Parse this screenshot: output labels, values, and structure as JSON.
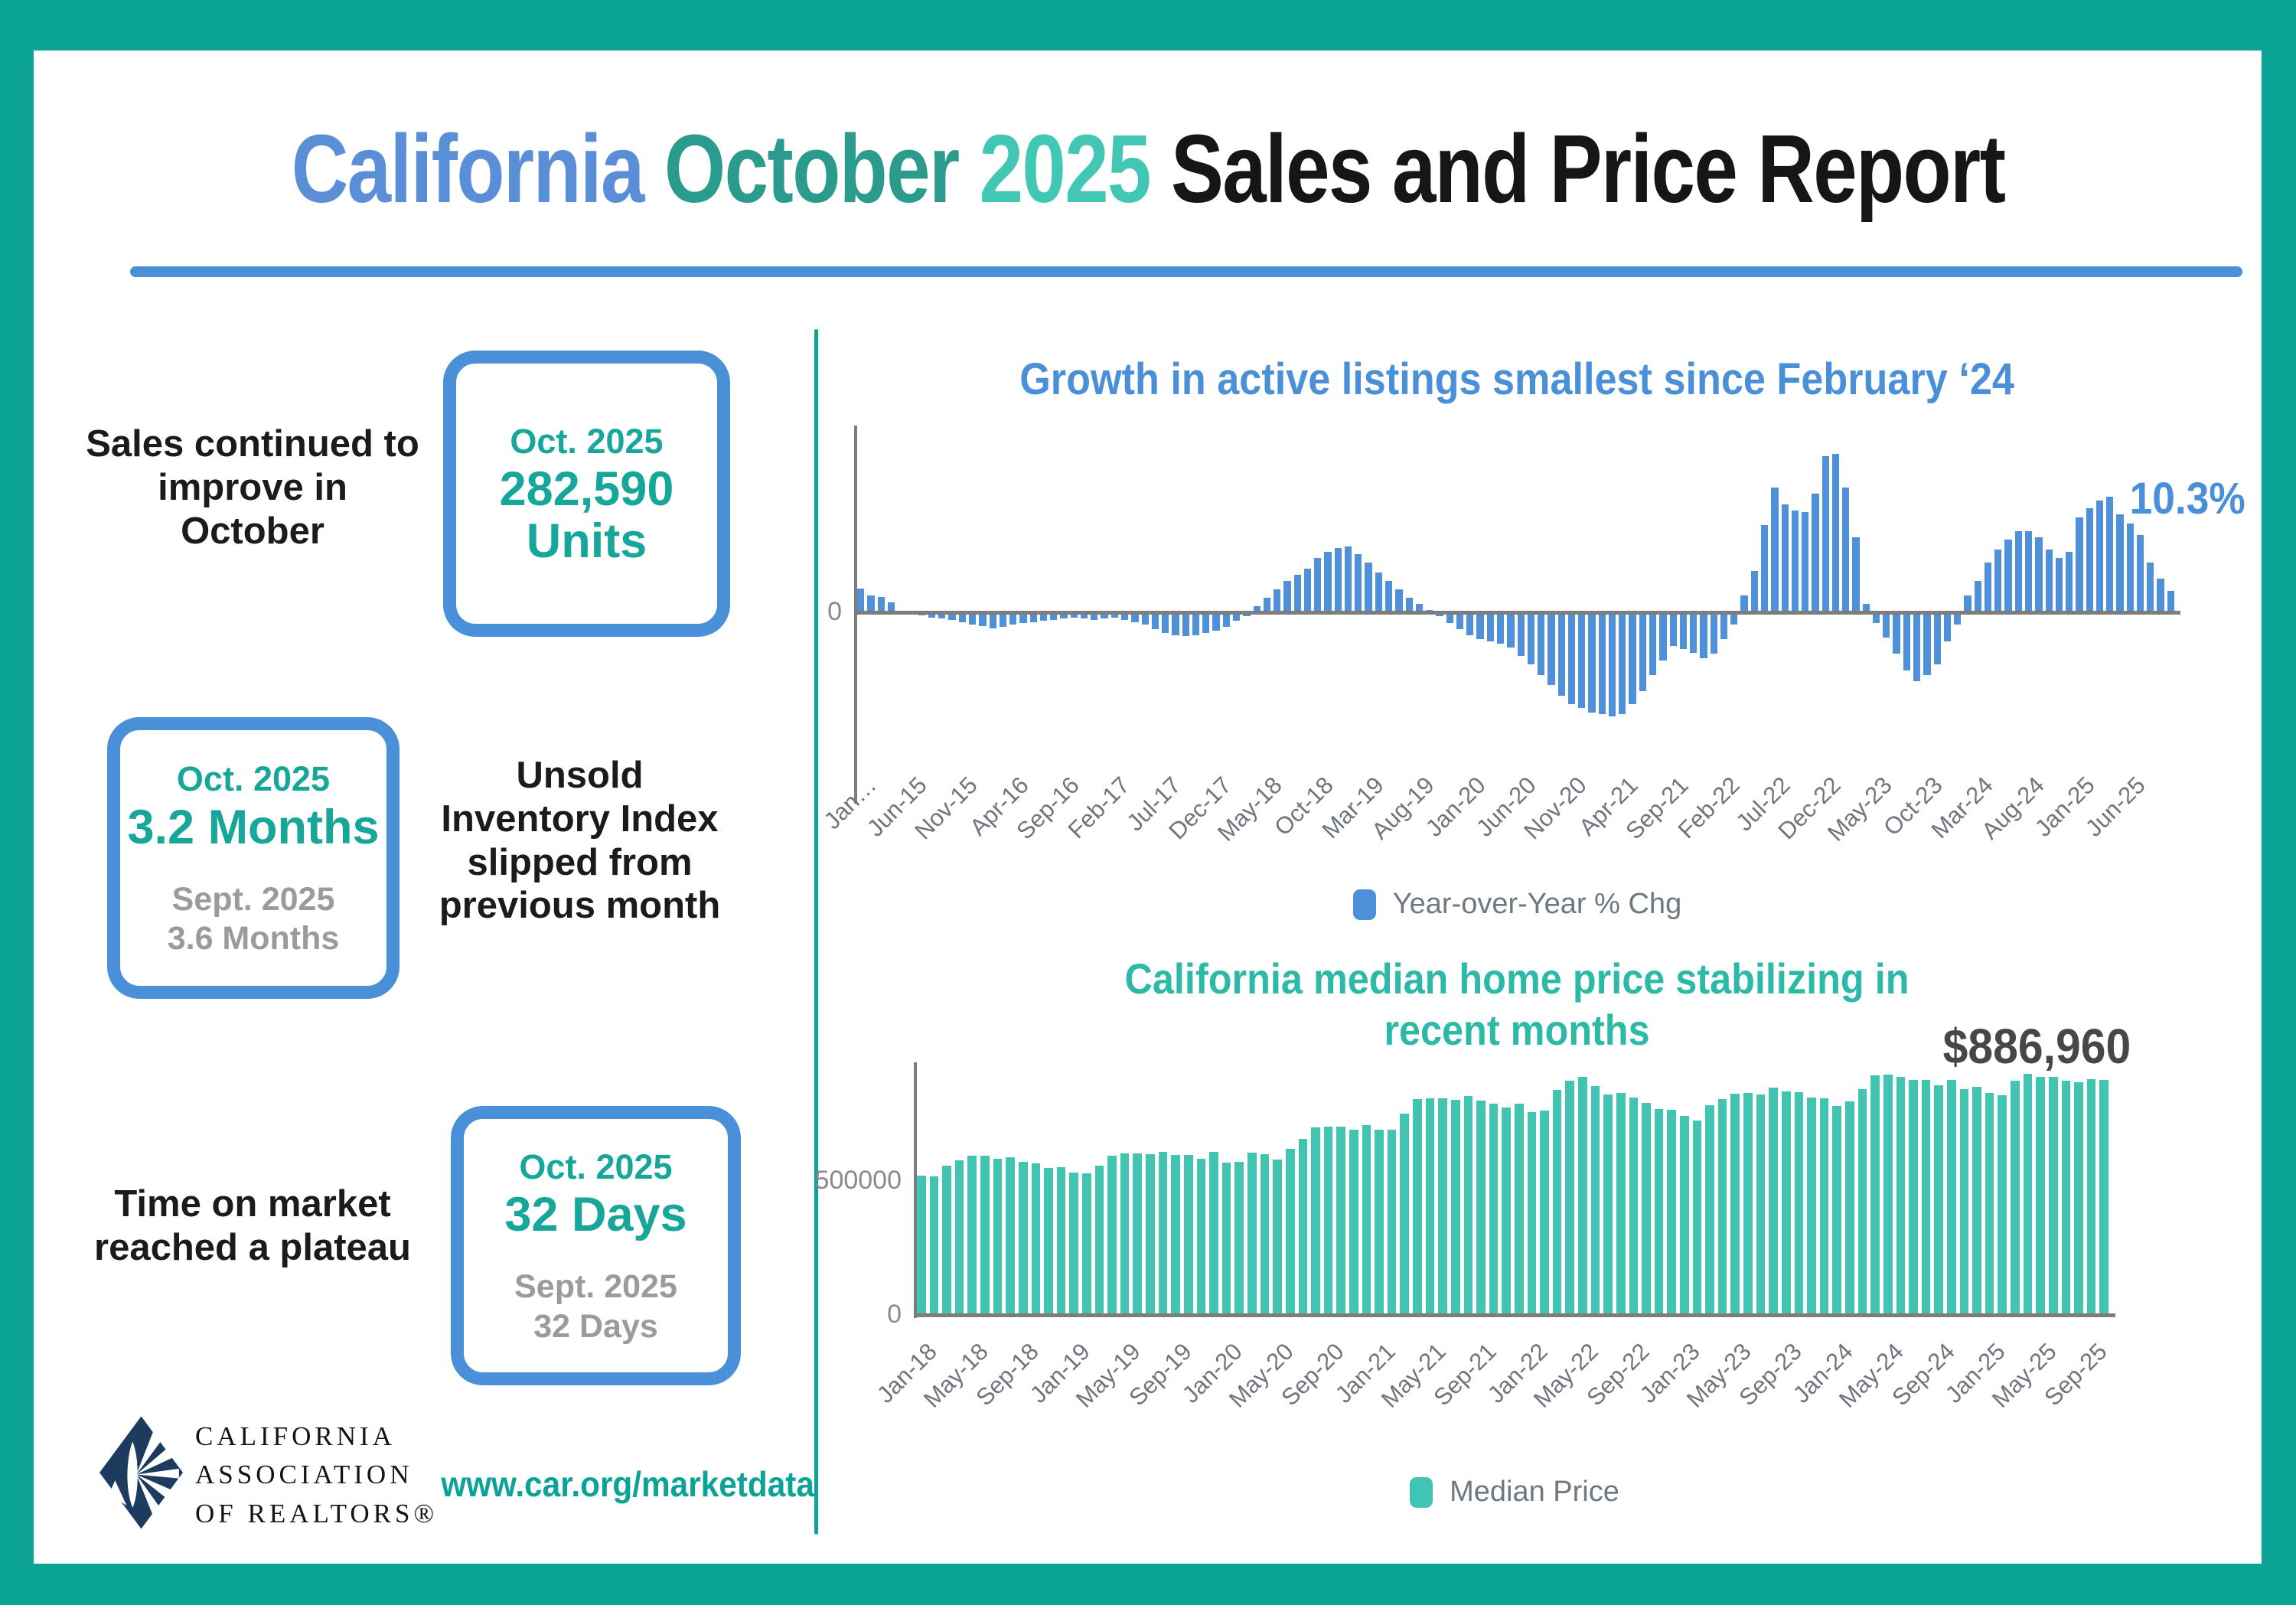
{
  "header": {
    "title_parts": [
      {
        "text": "California ",
        "color": "#5A8FD8"
      },
      {
        "text": "October ",
        "color": "#2B9B8E"
      },
      {
        "text": "2025 ",
        "color": "#43C7B5"
      },
      {
        "text": "Sales and Price Report",
        "color": "#161616"
      }
    ]
  },
  "colors": {
    "frame_teal": "#0AA396",
    "accent_blue": "#4A90D9",
    "stat_teal": "#17A69A",
    "stat_gray": "#9B9B9B",
    "bar_blue": "#4E90D9",
    "bar_teal": "#41C4B1",
    "title_teal": "#2CB9A8"
  },
  "stats": [
    {
      "label": "Sales continued to improve in October",
      "box": {
        "period": "Oct. 2025",
        "value": "282,590",
        "value2": "Units"
      }
    },
    {
      "label": "Unsold Inventory Index slipped from previous month",
      "box": {
        "period": "Oct. 2025",
        "value": "3.2 Months",
        "prev_period": "Sept. 2025",
        "prev_value": "3.6 Months"
      }
    },
    {
      "label": "Time on market reached a plateau",
      "box": {
        "period": "Oct. 2025",
        "value": "32 Days",
        "prev_period": "Sept. 2025",
        "prev_value": "32 Days"
      }
    }
  ],
  "footer": {
    "logo_lines": [
      "CALIFORNIA",
      "ASSOCIATION",
      "OF REALTORS®"
    ],
    "url": "www.car.org/marketdata"
  },
  "chart_data": [
    {
      "type": "bar",
      "title": "Growth in active listings smallest since February ‘24",
      "legend": "Year-over-Year % Chg",
      "color": "#4E90D9",
      "unit": "percent YoY change",
      "x_start": "Jan-2015",
      "x_end": "Oct-2025",
      "x_tick_interval_months": 5,
      "x_tick_labels": [
        "Jan…",
        "Jun-15",
        "Nov-15",
        "Apr-16",
        "Sep-16",
        "Feb-17",
        "Jul-17",
        "Dec-17",
        "May-18",
        "Oct-18",
        "Mar-19",
        "Aug-19",
        "Jan-20",
        "Jun-20",
        "Nov-20",
        "Apr-21",
        "Sep-21",
        "Feb-22",
        "Jul-22",
        "Dec-22",
        "May-23",
        "Oct-23",
        "Mar-24",
        "Aug-24",
        "Jan-25",
        "Jun-25"
      ],
      "y_zero_label": "0",
      "ylim": [
        -55,
        80
      ],
      "grid": false,
      "legend_position": "bottom-center",
      "annotation_last_value": "10.3%",
      "values": [
        11.5,
        8.2,
        7.3,
        4.8,
        0.5,
        -0.6,
        -1.5,
        -2.4,
        -3,
        -3.6,
        -4.6,
        -6,
        -6.6,
        -7.6,
        -7,
        -6,
        -5.2,
        -4.6,
        -4,
        -3.5,
        -3,
        -2.6,
        -3,
        -3.6,
        -3,
        -2.6,
        -3.6,
        -4.6,
        -6,
        -8,
        -10,
        -11.2,
        -11.5,
        -11,
        -10,
        -9,
        -7,
        -4,
        -1.8,
        3,
        7,
        11,
        15,
        18,
        21,
        26,
        29,
        31,
        31.5,
        28,
        24,
        19,
        15,
        11,
        7,
        4,
        1,
        -2,
        -5,
        -8,
        -11,
        -13,
        -14,
        -15,
        -17,
        -21,
        -25,
        -30,
        -35,
        -40,
        -44,
        -46,
        -48,
        -49,
        -50,
        -49,
        -44,
        -38,
        -30,
        -23,
        -16,
        -17.5,
        -19.5,
        -22,
        -20,
        -13,
        -6,
        8,
        20,
        42,
        60,
        52,
        49,
        48,
        57,
        75,
        76,
        60,
        36,
        4,
        -5,
        -12,
        -20,
        -28,
        -33,
        -30,
        -25,
        -14,
        -6,
        8,
        15,
        24,
        30,
        35,
        39,
        39,
        36,
        30,
        26,
        29,
        45.5,
        50,
        53.5,
        55.5,
        47,
        42.5,
        37,
        24,
        16,
        10.3
      ]
    },
    {
      "type": "bar",
      "title": "California median home price stabilizing in recent months",
      "legend": "Median Price",
      "color": "#41C4B1",
      "unit": "USD",
      "x_start": "Jan-2018",
      "x_end": "Oct-2025",
      "x_tick_interval_months": 4,
      "x_tick_labels": [
        "Jan-18",
        "May-18",
        "Sep-18",
        "Jan-19",
        "May-19",
        "Sep-19",
        "Jan-20",
        "May-20",
        "Sep-20",
        "Jan-21",
        "May-21",
        "Sep-21",
        "Jan-22",
        "May-22",
        "Sep-22",
        "Jan-23",
        "May-23",
        "Sep-23",
        "Jan-24",
        "May-24",
        "Sep-24",
        "Jan-25",
        "May-25",
        "Sep-25"
      ],
      "y_tick_labels": [
        "0",
        "500000"
      ],
      "ylim": [
        0,
        950000
      ],
      "grid": false,
      "legend_position": "bottom-center",
      "annotation_last_value": "$886,960",
      "values": [
        527000,
        522000,
        564000,
        584000,
        600000,
        602000,
        591000,
        596000,
        578000,
        572000,
        554000,
        557000,
        538000,
        534000,
        565000,
        602000,
        611000,
        611000,
        607000,
        617000,
        605000,
        605000,
        589000,
        615000,
        575000,
        578000,
        612000,
        606000,
        588000,
        626000,
        666000,
        707000,
        712000,
        711000,
        699000,
        717000,
        699000,
        699000,
        759000,
        814000,
        819000,
        819000,
        811000,
        827000,
        809000,
        798000,
        782000,
        797000,
        765000,
        771000,
        849000,
        884000,
        898000,
        864000,
        833000,
        839000,
        821000,
        801000,
        777000,
        774000,
        751000,
        735000,
        791000,
        815000,
        836000,
        838000,
        832000,
        859000,
        843000,
        840000,
        822000,
        819000,
        788000,
        806000,
        854000,
        904000,
        908000,
        900000,
        886000,
        888000,
        868000,
        888000,
        852000,
        861000,
        838000,
        829000,
        884000,
        910000,
        900000,
        899000,
        884000,
        880000,
        890000,
        886960
      ]
    }
  ]
}
